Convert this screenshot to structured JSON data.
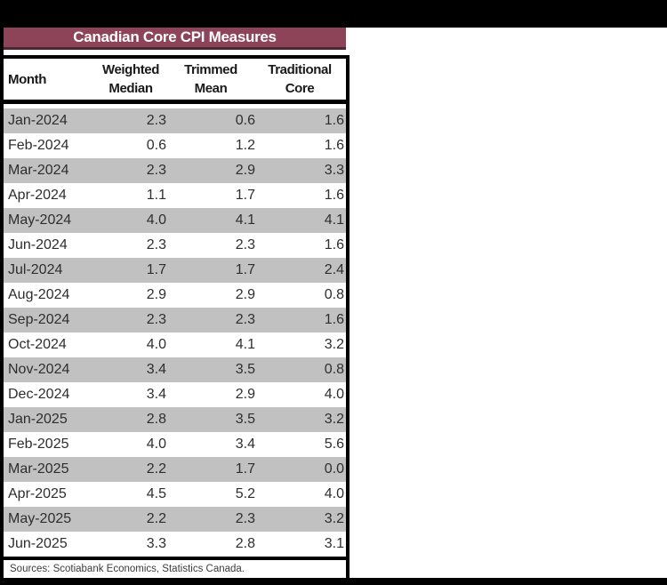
{
  "title": "Canadian Core CPI Measures",
  "colors": {
    "title_bg": "#8e4458",
    "title_text": "#ffffff",
    "stripe_gray": "#c1c1c1",
    "frame": "#000000"
  },
  "table": {
    "header": {
      "col1": "Month",
      "col2_line1": "Weighted",
      "col2_line2": "Median",
      "col3_line1": "Trimmed",
      "col3_line2": "Mean",
      "col4_line1": "Traditional",
      "col4_line2": "Core"
    },
    "rows": [
      {
        "month": "Jan-2024",
        "wm": "2.3",
        "tm": "0.6",
        "tc": "1.6"
      },
      {
        "month": "Feb-2024",
        "wm": "0.6",
        "tm": "1.2",
        "tc": "1.6"
      },
      {
        "month": "Mar-2024",
        "wm": "2.3",
        "tm": "2.9",
        "tc": "3.3"
      },
      {
        "month": "Apr-2024",
        "wm": "1.1",
        "tm": "1.7",
        "tc": "1.6"
      },
      {
        "month": "May-2024",
        "wm": "4.0",
        "tm": "4.1",
        "tc": "4.1"
      },
      {
        "month": "Jun-2024",
        "wm": "2.3",
        "tm": "2.3",
        "tc": "1.6"
      },
      {
        "month": "Jul-2024",
        "wm": "1.7",
        "tm": "1.7",
        "tc": "2.4"
      },
      {
        "month": "Aug-2024",
        "wm": "2.9",
        "tm": "2.9",
        "tc": "0.8"
      },
      {
        "month": "Sep-2024",
        "wm": "2.3",
        "tm": "2.3",
        "tc": "1.6"
      },
      {
        "month": "Oct-2024",
        "wm": "4.0",
        "tm": "4.1",
        "tc": "3.2"
      },
      {
        "month": "Nov-2024",
        "wm": "3.4",
        "tm": "3.5",
        "tc": "0.8"
      },
      {
        "month": "Dec-2024",
        "wm": "3.4",
        "tm": "2.9",
        "tc": "4.0"
      },
      {
        "month": "Jan-2025",
        "wm": "2.8",
        "tm": "3.5",
        "tc": "3.2"
      },
      {
        "month": "Feb-2025",
        "wm": "4.0",
        "tm": "3.4",
        "tc": "5.6"
      },
      {
        "month": "Mar-2025",
        "wm": "2.2",
        "tm": "1.7",
        "tc": "0.0"
      },
      {
        "month": "Apr-2025",
        "wm": "4.5",
        "tm": "5.2",
        "tc": "4.0"
      },
      {
        "month": "May-2025",
        "wm": "2.2",
        "tm": "2.3",
        "tc": "3.2"
      },
      {
        "month": "Jun-2025",
        "wm": "3.3",
        "tm": "2.8",
        "tc": "3.1"
      }
    ]
  },
  "footer": {
    "sources": "Sources: Scotiabank Economics, Statistics Canada."
  },
  "chart_data": {
    "type": "table",
    "title": "Canadian Core CPI Measures",
    "columns": [
      "Month",
      "Weighted Median",
      "Trimmed Mean",
      "Traditional Core"
    ],
    "categories": [
      "Jan-2024",
      "Feb-2024",
      "Mar-2024",
      "Apr-2024",
      "May-2024",
      "Jun-2024",
      "Jul-2024",
      "Aug-2024",
      "Sep-2024",
      "Oct-2024",
      "Nov-2024",
      "Dec-2024",
      "Jan-2025",
      "Feb-2025",
      "Mar-2025",
      "Apr-2025",
      "May-2025",
      "Jun-2025"
    ],
    "series": [
      {
        "name": "Weighted Median",
        "values": [
          2.3,
          0.6,
          2.3,
          1.1,
          4.0,
          2.3,
          1.7,
          2.9,
          2.3,
          4.0,
          3.4,
          3.4,
          2.8,
          4.0,
          2.2,
          4.5,
          2.2,
          3.3
        ]
      },
      {
        "name": "Trimmed Mean",
        "values": [
          0.6,
          1.2,
          2.9,
          1.7,
          4.1,
          2.3,
          1.7,
          2.9,
          2.3,
          4.1,
          3.5,
          2.9,
          3.5,
          3.4,
          1.7,
          5.2,
          2.3,
          2.8
        ]
      },
      {
        "name": "Traditional Core",
        "values": [
          1.6,
          1.6,
          3.3,
          1.6,
          4.1,
          1.6,
          2.4,
          0.8,
          1.6,
          3.2,
          0.8,
          4.0,
          3.2,
          5.6,
          0.0,
          4.0,
          3.2,
          3.1
        ]
      }
    ],
    "source_note": "Sources: Scotiabank Economics, Statistics Canada.",
    "layout": {
      "row_striping": "odd rows gray",
      "values_alignment": "right"
    }
  }
}
